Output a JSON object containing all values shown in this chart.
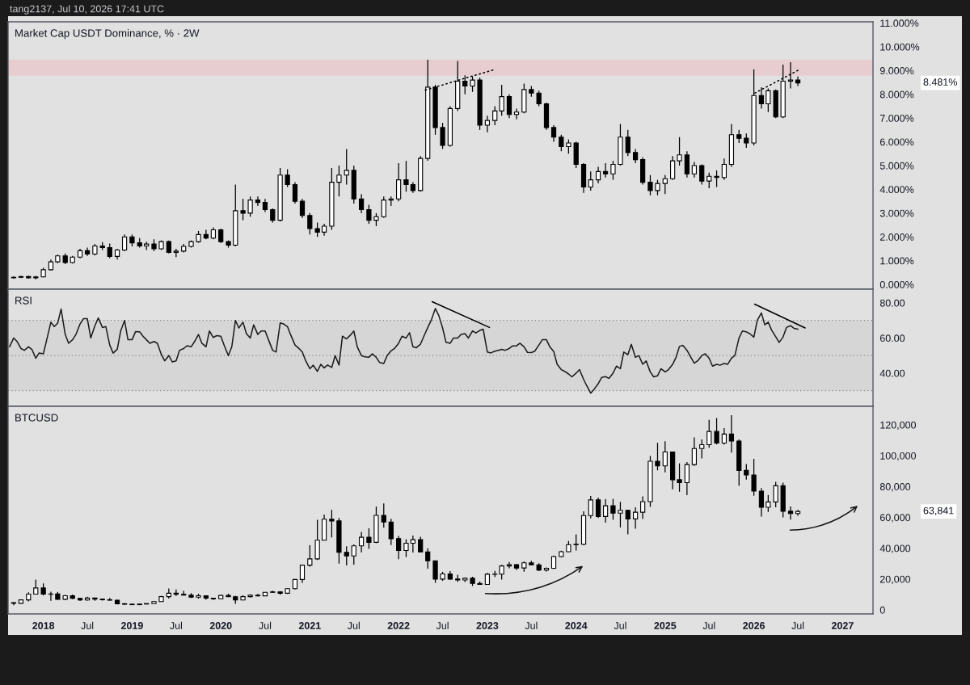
{
  "chart_data": [
    {
      "type": "candlestick",
      "title": "Market Cap USDT Dominance, % · 2W",
      "subtitle": "tang2137, Jul 10, 2026 17:41 UTC",
      "annotations": [
        "8.481%"
      ],
      "color": "#000000",
      "x": [
        "2017-09",
        "2017-10",
        "2017-11",
        "2017-12",
        "2018-01",
        "2018-02",
        "2018-03",
        "2018-04",
        "2018-05",
        "2018-06",
        "2018-07",
        "2018-08",
        "2018-09",
        "2018-10",
        "2018-11",
        "2018-12",
        "2019-01",
        "2019-02",
        "2019-03",
        "2019-04",
        "2019-05",
        "2019-06",
        "2019-07",
        "2019-08",
        "2019-09",
        "2019-10",
        "2019-11",
        "2019-12",
        "2020-01",
        "2020-02",
        "2020-03",
        "2020-04",
        "2020-05",
        "2020-06",
        "2020-07",
        "2020-08",
        "2020-09",
        "2020-10",
        "2020-11",
        "2020-12",
        "2021-01",
        "2021-02",
        "2021-03",
        "2021-04",
        "2021-05",
        "2021-06",
        "2021-07",
        "2021-08",
        "2021-09",
        "2021-10",
        "2021-11",
        "2021-12",
        "2022-01",
        "2022-02",
        "2022-03",
        "2022-04",
        "2022-05",
        "2022-06",
        "2022-07",
        "2022-08",
        "2022-09",
        "2022-10",
        "2022-11",
        "2022-12",
        "2023-01",
        "2023-02",
        "2023-03",
        "2023-04",
        "2023-05",
        "2023-06",
        "2023-07",
        "2023-08",
        "2023-09",
        "2023-10",
        "2023-11",
        "2023-12",
        "2024-01",
        "2024-02",
        "2024-03",
        "2024-04",
        "2024-05",
        "2024-06",
        "2024-07",
        "2024-08",
        "2024-09",
        "2024-10",
        "2024-11",
        "2024-12",
        "2025-01",
        "2025-02",
        "2025-03",
        "2025-04",
        "2025-05",
        "2025-06",
        "2025-07",
        "2025-08",
        "2025-09",
        "2025-10",
        "2025-11",
        "2025-12",
        "2026-01",
        "2026-02",
        "2026-03",
        "2026-04",
        "2026-05",
        "2026-06",
        "2026-07"
      ],
      "ohlc": [
        [
          0.28,
          0.34,
          0.24,
          0.3
        ],
        [
          0.3,
          0.36,
          0.27,
          0.33
        ],
        [
          0.33,
          0.36,
          0.25,
          0.28
        ],
        [
          0.28,
          0.36,
          0.22,
          0.32
        ],
        [
          0.32,
          0.7,
          0.3,
          0.62
        ],
        [
          0.62,
          1.05,
          0.58,
          0.95
        ],
        [
          0.95,
          1.25,
          0.9,
          1.2
        ],
        [
          1.2,
          1.3,
          0.85,
          0.92
        ],
        [
          0.92,
          1.2,
          0.88,
          1.15
        ],
        [
          1.15,
          1.5,
          1.1,
          1.42
        ],
        [
          1.42,
          1.55,
          1.2,
          1.28
        ],
        [
          1.28,
          1.7,
          1.22,
          1.62
        ],
        [
          1.62,
          1.78,
          1.45,
          1.55
        ],
        [
          1.55,
          1.72,
          1.1,
          1.18
        ],
        [
          1.18,
          1.5,
          1.05,
          1.45
        ],
        [
          1.45,
          2.1,
          1.4,
          2.0
        ],
        [
          2.0,
          2.1,
          1.6,
          1.75
        ],
        [
          1.75,
          1.95,
          1.55,
          1.62
        ],
        [
          1.62,
          1.8,
          1.45,
          1.7
        ],
        [
          1.7,
          1.9,
          1.4,
          1.5
        ],
        [
          1.5,
          1.85,
          1.45,
          1.8
        ],
        [
          1.8,
          1.85,
          1.3,
          1.35
        ],
        [
          1.35,
          1.5,
          1.15,
          1.4
        ],
        [
          1.4,
          1.7,
          1.35,
          1.6
        ],
        [
          1.6,
          1.85,
          1.55,
          1.8
        ],
        [
          1.8,
          2.25,
          1.75,
          2.1
        ],
        [
          2.1,
          2.3,
          1.9,
          1.95
        ],
        [
          1.95,
          2.4,
          1.9,
          2.3
        ],
        [
          2.3,
          2.35,
          1.75,
          1.8
        ],
        [
          1.8,
          1.85,
          1.55,
          1.65
        ],
        [
          1.65,
          4.2,
          1.6,
          3.1
        ],
        [
          3.1,
          3.6,
          2.7,
          3.0
        ],
        [
          3.0,
          3.7,
          2.85,
          3.55
        ],
        [
          3.55,
          3.7,
          3.3,
          3.45
        ],
        [
          3.45,
          3.6,
          3.05,
          3.15
        ],
        [
          3.15,
          3.2,
          2.6,
          2.7
        ],
        [
          2.7,
          4.9,
          2.65,
          4.6
        ],
        [
          4.6,
          4.85,
          4.1,
          4.2
        ],
        [
          4.2,
          4.3,
          3.4,
          3.5
        ],
        [
          3.5,
          3.6,
          2.8,
          2.9
        ],
        [
          2.9,
          3.0,
          2.1,
          2.35
        ],
        [
          2.35,
          2.6,
          2.0,
          2.2
        ],
        [
          2.2,
          2.55,
          2.05,
          2.45
        ],
        [
          2.45,
          4.9,
          2.3,
          4.3
        ],
        [
          4.3,
          5.0,
          3.7,
          4.6
        ],
        [
          4.6,
          5.7,
          4.2,
          4.8
        ],
        [
          4.8,
          5.0,
          3.4,
          3.6
        ],
        [
          3.6,
          3.8,
          3.0,
          3.15
        ],
        [
          3.15,
          3.35,
          2.55,
          2.7
        ],
        [
          2.7,
          3.0,
          2.45,
          2.85
        ],
        [
          2.85,
          3.7,
          2.8,
          3.55
        ],
        [
          3.55,
          3.7,
          3.3,
          3.6
        ],
        [
          3.6,
          5.1,
          3.5,
          4.4
        ],
        [
          4.4,
          5.2,
          3.9,
          4.2
        ],
        [
          4.2,
          4.3,
          3.85,
          3.95
        ],
        [
          3.95,
          5.4,
          3.9,
          5.3
        ],
        [
          5.3,
          9.45,
          5.2,
          8.3
        ],
        [
          8.3,
          8.4,
          6.3,
          6.6
        ],
        [
          6.6,
          6.8,
          5.7,
          5.85
        ],
        [
          5.85,
          7.5,
          5.8,
          7.4
        ],
        [
          7.4,
          9.4,
          7.3,
          8.55
        ],
        [
          8.55,
          8.8,
          8.0,
          8.35
        ],
        [
          8.35,
          8.75,
          8.1,
          8.6
        ],
        [
          8.6,
          8.7,
          6.5,
          6.7
        ],
        [
          6.7,
          7.1,
          6.4,
          6.9
        ],
        [
          6.9,
          7.5,
          6.7,
          7.3
        ],
        [
          7.3,
          8.4,
          7.1,
          7.9
        ],
        [
          7.9,
          8.0,
          7.0,
          7.15
        ],
        [
          7.15,
          7.4,
          6.95,
          7.25
        ],
        [
          7.25,
          8.45,
          7.2,
          8.2
        ],
        [
          8.2,
          8.35,
          7.9,
          8.05
        ],
        [
          8.05,
          8.15,
          7.5,
          7.6
        ],
        [
          7.6,
          7.65,
          6.5,
          6.6
        ],
        [
          6.6,
          6.7,
          6.0,
          6.2
        ],
        [
          6.2,
          6.3,
          5.6,
          5.8
        ],
        [
          5.8,
          6.1,
          5.5,
          5.95
        ],
        [
          5.95,
          6.0,
          4.9,
          5.05
        ],
        [
          5.05,
          5.1,
          3.85,
          4.1
        ],
        [
          4.1,
          4.75,
          3.95,
          4.4
        ],
        [
          4.4,
          4.95,
          4.25,
          4.75
        ],
        [
          4.75,
          5.1,
          4.5,
          4.65
        ],
        [
          4.65,
          5.2,
          4.4,
          5.05
        ],
        [
          5.05,
          6.75,
          5.0,
          6.2
        ],
        [
          6.2,
          6.5,
          5.4,
          5.55
        ],
        [
          5.55,
          5.7,
          5.1,
          5.25
        ],
        [
          5.25,
          5.35,
          4.2,
          4.3
        ],
        [
          4.3,
          4.6,
          3.75,
          3.95
        ],
        [
          3.95,
          4.4,
          3.75,
          4.25
        ],
        [
          4.25,
          4.6,
          3.8,
          4.45
        ],
        [
          4.45,
          5.4,
          4.4,
          5.2
        ],
        [
          5.2,
          6.2,
          5.0,
          5.45
        ],
        [
          5.45,
          5.6,
          4.5,
          4.65
        ],
        [
          4.65,
          5.15,
          4.5,
          5.0
        ],
        [
          5.0,
          5.05,
          4.2,
          4.35
        ],
        [
          4.35,
          4.7,
          4.05,
          4.55
        ],
        [
          4.55,
          4.8,
          4.1,
          4.5
        ],
        [
          4.5,
          5.3,
          4.4,
          5.05
        ],
        [
          5.05,
          6.75,
          4.95,
          6.3
        ],
        [
          6.3,
          6.5,
          5.95,
          6.15
        ],
        [
          6.15,
          6.35,
          5.75,
          5.95
        ],
        [
          5.95,
          9.05,
          5.85,
          7.95
        ],
        [
          7.95,
          8.3,
          7.4,
          7.6
        ],
        [
          7.6,
          8.25,
          7.25,
          8.15
        ],
        [
          8.15,
          8.2,
          7.0,
          7.05
        ],
        [
          7.05,
          9.25,
          7.0,
          8.55
        ],
        [
          8.55,
          9.35,
          8.25,
          8.6
        ],
        [
          8.6,
          8.75,
          8.35,
          8.481
        ]
      ],
      "series": [
        {
          "type": "line",
          "x": [
            "2022-04-21",
            "2023-01-27"
          ],
          "values": [
            8.18,
            9.03
          ],
          "color": "#000000",
          "line_style": "dotted"
        },
        {
          "type": "line",
          "x": [
            "2026-01-05",
            "2026-07-11"
          ],
          "values": [
            8.05,
            9.06
          ],
          "color": "#000000",
          "line_style": "dotted"
        }
      ],
      "bands": [
        {
          "axis": "y",
          "from": 8.78,
          "to": 9.46,
          "color": "#e8cdd0"
        }
      ],
      "xlim": [
        "2017-08-09",
        "2027-05-06"
      ],
      "ylim": [
        -0.2,
        11.05
      ],
      "yticks": [
        {
          "value": 0,
          "label": "0.000%"
        },
        {
          "value": 1,
          "label": "1.000%"
        },
        {
          "value": 2,
          "label": "2.000%"
        },
        {
          "value": 3,
          "label": "3.000%"
        },
        {
          "value": 4,
          "label": "4.000%"
        },
        {
          "value": 5,
          "label": "5.000%"
        },
        {
          "value": 6,
          "label": "6.000%"
        },
        {
          "value": 7,
          "label": "7.000%"
        },
        {
          "value": 8,
          "label": "8.000%"
        },
        {
          "value": 9,
          "label": "9.000%"
        },
        {
          "value": 10,
          "label": "10.000%"
        },
        {
          "value": 11,
          "label": "11.000%"
        }
      ],
      "tick_labels": "y"
    },
    {
      "type": "line",
      "title": "RSI",
      "x": [
        "2017-08-15",
        "2017-09-01",
        "2017-09-15",
        "2017-10-01",
        "2017-10-15",
        "2017-11-01",
        "2017-11-15",
        "2017-12-01",
        "2017-12-15",
        "2018-01-01",
        "2018-01-15",
        "2018-02-01",
        "2018-02-15",
        "2018-03-01",
        "2018-03-15",
        "2018-04-01",
        "2018-04-15",
        "2018-05-01",
        "2018-05-15",
        "2018-06-01",
        "2018-06-15",
        "2018-07-01",
        "2018-07-15",
        "2018-08-01",
        "2018-08-15",
        "2018-09-01",
        "2018-09-15",
        "2018-10-01",
        "2018-10-15",
        "2018-11-01",
        "2018-11-15",
        "2018-12-01",
        "2018-12-15",
        "2019-01-01",
        "2019-01-15",
        "2019-02-01",
        "2019-02-15",
        "2019-03-01",
        "2019-03-15",
        "2019-04-01",
        "2019-04-15",
        "2019-05-01",
        "2019-05-15",
        "2019-06-01",
        "2019-06-15",
        "2019-07-01",
        "2019-07-15",
        "2019-08-01",
        "2019-08-15",
        "2019-09-01",
        "2019-09-15",
        "2019-10-01",
        "2019-10-15",
        "2019-11-01",
        "2019-11-15",
        "2019-12-01",
        "2019-12-15",
        "2020-01-01",
        "2020-01-15",
        "2020-02-01",
        "2020-02-15",
        "2020-03-01",
        "2020-03-15",
        "2020-04-01",
        "2020-04-15",
        "2020-05-01",
        "2020-05-15",
        "2020-06-01",
        "2020-06-15",
        "2020-07-01",
        "2020-07-15",
        "2020-08-01",
        "2020-08-15",
        "2020-09-01",
        "2020-09-15",
        "2020-10-01",
        "2020-10-15",
        "2020-11-01",
        "2020-11-15",
        "2020-12-01",
        "2020-12-15",
        "2021-01-01",
        "2021-01-15",
        "2021-02-01",
        "2021-02-15",
        "2021-03-01",
        "2021-03-15",
        "2021-04-01",
        "2021-04-15",
        "2021-05-01",
        "2021-05-15",
        "2021-06-01",
        "2021-06-15",
        "2021-07-01",
        "2021-07-15",
        "2021-08-01",
        "2021-08-15",
        "2021-09-01",
        "2021-09-15",
        "2021-10-01",
        "2021-10-15",
        "2021-11-01",
        "2021-11-15",
        "2021-12-01",
        "2021-12-15",
        "2022-01-01",
        "2022-01-15",
        "2022-02-01",
        "2022-02-15",
        "2022-03-01",
        "2022-03-15",
        "2022-04-01",
        "2022-04-15",
        "2022-05-01",
        "2022-05-15",
        "2022-06-01",
        "2022-06-15",
        "2022-07-01",
        "2022-07-15",
        "2022-08-01",
        "2022-08-15",
        "2022-09-01",
        "2022-09-15",
        "2022-10-01",
        "2022-10-15",
        "2022-11-01",
        "2022-11-15",
        "2022-12-01",
        "2022-12-15",
        "2023-01-01",
        "2023-01-15",
        "2023-02-01",
        "2023-02-15",
        "2023-03-01",
        "2023-03-15",
        "2023-04-01",
        "2023-04-15",
        "2023-05-01",
        "2023-05-15",
        "2023-06-01",
        "2023-06-15",
        "2023-07-01",
        "2023-07-15",
        "2023-08-01",
        "2023-08-15",
        "2023-09-01",
        "2023-09-15",
        "2023-10-01",
        "2023-10-15",
        "2023-11-01",
        "2023-11-15",
        "2023-12-01",
        "2023-12-15",
        "2024-01-01",
        "2024-01-15",
        "2024-02-01",
        "2024-02-15",
        "2024-03-01",
        "2024-03-15",
        "2024-04-01",
        "2024-04-15",
        "2024-05-01",
        "2024-05-15",
        "2024-06-01",
        "2024-06-15",
        "2024-07-01",
        "2024-07-15",
        "2024-08-01",
        "2024-08-15",
        "2024-09-01",
        "2024-09-15",
        "2024-10-01",
        "2024-10-15",
        "2024-11-01",
        "2024-11-15",
        "2024-12-01",
        "2024-12-15",
        "2025-01-01",
        "2025-01-15",
        "2025-02-01",
        "2025-02-15",
        "2025-03-01",
        "2025-03-15",
        "2025-04-01",
        "2025-04-15",
        "2025-05-01",
        "2025-05-15",
        "2025-06-01",
        "2025-06-15",
        "2025-07-01",
        "2025-07-15",
        "2025-08-01",
        "2025-08-15",
        "2025-09-01",
        "2025-09-15",
        "2025-10-01",
        "2025-10-15",
        "2025-11-01",
        "2025-11-15",
        "2025-12-01",
        "2025-12-15",
        "2026-01-01",
        "2026-01-15",
        "2026-02-01",
        "2026-02-15",
        "2026-03-01",
        "2026-03-15",
        "2026-04-01",
        "2026-04-15",
        "2026-05-01",
        "2026-05-15",
        "2026-06-01",
        "2026-06-15",
        "2026-07-01"
      ],
      "series": [
        {
          "color": "#1a1a1a",
          "values": [
            55,
            60,
            58,
            54,
            53,
            55,
            53.5,
            48.5,
            51.5,
            51,
            59,
            69,
            66.5,
            68.5,
            76.5,
            62,
            57,
            59,
            62,
            68,
            71,
            71,
            60,
            67,
            71.4,
            66,
            66.5,
            56,
            51.4,
            53.6,
            64,
            70,
            59,
            59,
            63.6,
            63.5,
            61,
            59,
            57,
            58,
            57,
            50.7,
            47,
            50,
            46.4,
            47,
            53,
            54,
            55.6,
            55,
            58,
            62,
            57,
            55,
            64,
            60.3,
            61.4,
            61,
            55.7,
            50,
            55,
            70,
            65.7,
            69,
            62.5,
            60,
            67.5,
            62,
            64,
            64,
            59,
            53,
            52,
            68.6,
            68,
            66.5,
            61.5,
            56,
            54.3,
            52,
            47,
            42.5,
            44.5,
            41,
            45,
            43,
            44.6,
            43.2,
            50,
            44.6,
            61,
            59.5,
            61.4,
            64,
            55,
            50,
            49.3,
            49,
            51,
            49,
            46,
            45.5,
            50,
            52.7,
            54,
            57,
            61,
            60,
            63,
            55,
            54.5,
            56.5,
            61,
            66,
            70,
            76.8,
            72.9,
            65.7,
            57.5,
            57,
            60,
            60,
            62,
            62.5,
            60,
            64,
            62.9,
            64.3,
            65,
            52,
            51.5,
            52.5,
            53,
            53.5,
            53,
            54,
            55.5,
            55.5,
            57,
            55,
            51.8,
            51.7,
            52.5,
            56,
            59,
            59,
            55,
            52.3,
            45,
            42,
            41,
            39.5,
            37.9,
            40,
            42,
            36.4,
            32.5,
            28.6,
            30.8,
            34,
            37.5,
            38,
            37,
            40,
            44,
            42.5,
            52,
            50.5,
            56.4,
            49,
            50,
            45,
            47,
            40.7,
            37.9,
            38.5,
            42.5,
            40.7,
            42,
            45,
            49,
            55.2,
            55.8,
            53,
            49.5,
            45.7,
            47,
            50,
            51,
            48.5,
            44,
            45,
            44.5,
            45.5,
            45,
            48.5,
            50,
            60,
            64,
            63.5,
            62.5,
            60.5,
            70,
            74.3,
            67.5,
            69,
            64.5,
            60.7,
            57.5,
            60.5,
            66,
            67,
            65.5,
            65
          ]
        },
        {
          "x": [
            "2022-05-19",
            "2023-01-10"
          ],
          "values": [
            80.7,
            66
          ],
          "color": "#000000"
        },
        {
          "x": [
            "2026-01-04",
            "2026-07-31"
          ],
          "values": [
            79.3,
            65.7
          ],
          "color": "#000000"
        }
      ],
      "bands": [
        {
          "axis": "y",
          "from": 30,
          "to": 70,
          "color": "#d6d6d6"
        }
      ],
      "ref_lines": [
        {
          "axis": "y",
          "value": 70,
          "color": "#8a8a8a",
          "line_style": "dotted"
        },
        {
          "axis": "y",
          "value": 50,
          "color": "#8a8a8a",
          "line_style": "dotted"
        },
        {
          "axis": "y",
          "value": 30,
          "color": "#8a8a8a",
          "line_style": "dotted"
        }
      ],
      "xlim": [
        "2017-08-09",
        "2027-05-06"
      ],
      "ylim": [
        21.1,
        87.8
      ],
      "yticks": [
        {
          "value": 40,
          "label": "40.00"
        },
        {
          "value": 60,
          "label": "60.00"
        },
        {
          "value": 80,
          "label": "80.00"
        }
      ],
      "tick_labels": "y"
    },
    {
      "type": "candlestick",
      "title": "BTCUSD",
      "annotations": [
        "63,841"
      ],
      "color": "#000000",
      "x": [
        "2017-09",
        "2017-10",
        "2017-11",
        "2017-12",
        "2018-01",
        "2018-02",
        "2018-03",
        "2018-04",
        "2018-05",
        "2018-06",
        "2018-07",
        "2018-08",
        "2018-09",
        "2018-10",
        "2018-11",
        "2018-12",
        "2019-01",
        "2019-02",
        "2019-03",
        "2019-04",
        "2019-05",
        "2019-06",
        "2019-07",
        "2019-08",
        "2019-09",
        "2019-10",
        "2019-11",
        "2019-12",
        "2020-01",
        "2020-02",
        "2020-03",
        "2020-04",
        "2020-05",
        "2020-06",
        "2020-07",
        "2020-08",
        "2020-09",
        "2020-10",
        "2020-11",
        "2020-12",
        "2021-01",
        "2021-02",
        "2021-03",
        "2021-04",
        "2021-05",
        "2021-06",
        "2021-07",
        "2021-08",
        "2021-09",
        "2021-10",
        "2021-11",
        "2021-12",
        "2022-01",
        "2022-02",
        "2022-03",
        "2022-04",
        "2022-05",
        "2022-06",
        "2022-07",
        "2022-08",
        "2022-09",
        "2022-10",
        "2022-11",
        "2022-12",
        "2023-01",
        "2023-02",
        "2023-03",
        "2023-04",
        "2023-05",
        "2023-06",
        "2023-07",
        "2023-08",
        "2023-09",
        "2023-10",
        "2023-11",
        "2023-12",
        "2024-01",
        "2024-02",
        "2024-03",
        "2024-04",
        "2024-05",
        "2024-06",
        "2024-07",
        "2024-08",
        "2024-09",
        "2024-10",
        "2024-11",
        "2024-12",
        "2025-01",
        "2025-02",
        "2025-03",
        "2025-04",
        "2025-05",
        "2025-06",
        "2025-07",
        "2025-08",
        "2025-09",
        "2025-10",
        "2025-11",
        "2025-12",
        "2026-01",
        "2026-02",
        "2026-03",
        "2026-04",
        "2026-05",
        "2026-06",
        "2026-07"
      ],
      "ohlc": [
        [
          4700,
          5000,
          3000,
          4300
        ],
        [
          4300,
          6500,
          4200,
          6500
        ],
        [
          6500,
          11400,
          5500,
          10200
        ],
        [
          10200,
          19700,
          10000,
          14200
        ],
        [
          14200,
          17200,
          9400,
          10200
        ],
        [
          10200,
          11800,
          5900,
          10300
        ],
        [
          10300,
          11700,
          6600,
          6900
        ],
        [
          6900,
          9700,
          6400,
          9200
        ],
        [
          9200,
          10000,
          7000,
          7500
        ],
        [
          7500,
          7800,
          5800,
          6400
        ],
        [
          6400,
          8500,
          6100,
          7700
        ],
        [
          7700,
          7800,
          5900,
          7000
        ],
        [
          7000,
          7400,
          6100,
          6600
        ],
        [
          6600,
          7700,
          6200,
          6300
        ],
        [
          6300,
          6600,
          3600,
          4000
        ],
        [
          4000,
          4300,
          3200,
          3700
        ],
        [
          3700,
          4100,
          3400,
          3400
        ],
        [
          3400,
          4200,
          3400,
          3800
        ],
        [
          3800,
          4100,
          3700,
          4100
        ],
        [
          4100,
          5600,
          4100,
          5400
        ],
        [
          5400,
          9100,
          5300,
          8600
        ],
        [
          8600,
          13900,
          7400,
          10800
        ],
        [
          10800,
          13200,
          9100,
          10100
        ],
        [
          10100,
          12300,
          9400,
          9600
        ],
        [
          9600,
          10900,
          7700,
          8300
        ],
        [
          8300,
          10500,
          7300,
          9200
        ],
        [
          9200,
          9500,
          6500,
          7600
        ],
        [
          7600,
          7700,
          6400,
          7200
        ],
        [
          7200,
          9600,
          6900,
          9400
        ],
        [
          9400,
          10500,
          8400,
          8500
        ],
        [
          8500,
          9200,
          3900,
          6400
        ],
        [
          6400,
          9500,
          6200,
          8600
        ],
        [
          8600,
          10100,
          8100,
          9500
        ],
        [
          9500,
          10400,
          8800,
          9100
        ],
        [
          9100,
          11500,
          9000,
          11400
        ],
        [
          11400,
          12500,
          11000,
          11700
        ],
        [
          11700,
          12100,
          9900,
          10800
        ],
        [
          10800,
          14100,
          10400,
          13800
        ],
        [
          13800,
          19900,
          13200,
          19700
        ],
        [
          19700,
          29300,
          17600,
          29000
        ],
        [
          29000,
          42000,
          28100,
          33100
        ],
        [
          33100,
          58400,
          32300,
          45200
        ],
        [
          45200,
          61800,
          45000,
          58800
        ],
        [
          58800,
          64900,
          47000,
          57700
        ],
        [
          57700,
          59600,
          30000,
          37300
        ],
        [
          37300,
          41300,
          28800,
          35000
        ],
        [
          35000,
          42400,
          29300,
          41500
        ],
        [
          41500,
          50500,
          37300,
          47100
        ],
        [
          47100,
          52900,
          39600,
          43800
        ],
        [
          43800,
          67000,
          43300,
          61300
        ],
        [
          61300,
          69000,
          53300,
          57000
        ],
        [
          57000,
          59100,
          42000,
          46200
        ],
        [
          46200,
          48000,
          32900,
          38500
        ],
        [
          38500,
          45800,
          34300,
          43200
        ],
        [
          43200,
          48200,
          37200,
          45500
        ],
        [
          45500,
          47400,
          37500,
          37600
        ],
        [
          37600,
          40000,
          26700,
          31800
        ],
        [
          31800,
          32000,
          17600,
          20000
        ],
        [
          20000,
          24700,
          18800,
          23300
        ],
        [
          23300,
          25200,
          19500,
          20000
        ],
        [
          20000,
          22800,
          18200,
          19400
        ],
        [
          19400,
          21000,
          18100,
          20500
        ],
        [
          20500,
          21500,
          15500,
          17200
        ],
        [
          17200,
          18400,
          16300,
          16500
        ],
        [
          16500,
          24000,
          16500,
          23100
        ],
        [
          23100,
          25300,
          21400,
          23200
        ],
        [
          23200,
          29200,
          19600,
          28500
        ],
        [
          28500,
          31000,
          27000,
          29300
        ],
        [
          29300,
          29800,
          25800,
          27200
        ],
        [
          27200,
          31400,
          24800,
          30500
        ],
        [
          30500,
          31800,
          28900,
          29200
        ],
        [
          29200,
          30200,
          25200,
          25900
        ],
        [
          25900,
          27500,
          24900,
          27000
        ],
        [
          27000,
          35200,
          26600,
          34600
        ],
        [
          34600,
          38400,
          34100,
          37700
        ],
        [
          37700,
          44700,
          37600,
          42300
        ],
        [
          42300,
          49000,
          38500,
          42600
        ],
        [
          42600,
          63900,
          41900,
          61200
        ],
        [
          61200,
          73800,
          59300,
          71300
        ],
        [
          71300,
          72800,
          59600,
          60600
        ],
        [
          60600,
          71900,
          56600,
          67500
        ],
        [
          67500,
          72000,
          58400,
          62700
        ],
        [
          62700,
          70000,
          53500,
          64600
        ],
        [
          64600,
          65000,
          49000,
          59000
        ],
        [
          59000,
          66500,
          52600,
          63300
        ],
        [
          63300,
          73600,
          58900,
          70200
        ],
        [
          70200,
          99800,
          66800,
          96400
        ],
        [
          96400,
          108300,
          90500,
          93400
        ],
        [
          93400,
          109400,
          89200,
          102400
        ],
        [
          102400,
          102500,
          78200,
          84400
        ],
        [
          84400,
          95000,
          76600,
          82500
        ],
        [
          82500,
          95800,
          74400,
          94200
        ],
        [
          94200,
          111900,
          93400,
          104600
        ],
        [
          104600,
          110500,
          98200,
          107100
        ],
        [
          107100,
          123200,
          105100,
          115700
        ],
        [
          115700,
          124400,
          107300,
          108200
        ],
        [
          108200,
          117900,
          107300,
          114000
        ],
        [
          114000,
          126200,
          102000,
          109500
        ],
        [
          109500,
          110500,
          80600,
          90400
        ],
        [
          90400,
          94500,
          84500,
          87500
        ],
        [
          87500,
          97900,
          74000,
          77000
        ],
        [
          77000,
          79000,
          60500,
          66500
        ],
        [
          66500,
          74500,
          63500,
          70000
        ],
        [
          70000,
          83000,
          66500,
          80500
        ],
        [
          80500,
          82500,
          60000,
          64000
        ],
        [
          64000,
          67000,
          58500,
          62500
        ],
        [
          62500,
          64800,
          61000,
          63841
        ]
      ],
      "xlim": [
        "2017-08-09",
        "2027-05-06"
      ],
      "ylim": [
        -2600,
        132000
      ],
      "xticks": [
        {
          "value": "2018-01-01",
          "label": "2018"
        },
        {
          "value": "2018-07-01",
          "label": "Jul"
        },
        {
          "value": "2019-01-01",
          "label": "2019"
        },
        {
          "value": "2019-07-01",
          "label": "Jul"
        },
        {
          "value": "2020-01-01",
          "label": "2020"
        },
        {
          "value": "2020-07-01",
          "label": "Jul"
        },
        {
          "value": "2021-01-01",
          "label": "2021"
        },
        {
          "value": "2021-07-01",
          "label": "Jul"
        },
        {
          "value": "2022-01-01",
          "label": "2022"
        },
        {
          "value": "2022-07-01",
          "label": "Jul"
        },
        {
          "value": "2023-01-01",
          "label": "2023"
        },
        {
          "value": "2023-07-01",
          "label": "Jul"
        },
        {
          "value": "2024-01-01",
          "label": "2024"
        },
        {
          "value": "2024-07-01",
          "label": "Jul"
        },
        {
          "value": "2025-01-01",
          "label": "2025"
        },
        {
          "value": "2025-07-01",
          "label": "Jul"
        },
        {
          "value": "2026-01-01",
          "label": "2026"
        },
        {
          "value": "2026-07-01",
          "label": "Jul"
        },
        {
          "value": "2027-01-01",
          "label": "2027"
        }
      ],
      "yticks": [
        0,
        {
          "value": 20000,
          "label": "20,000"
        },
        {
          "value": 40000,
          "label": "40,000"
        },
        {
          "value": 60000,
          "label": "60,000"
        },
        {
          "value": 80000,
          "label": "80,000"
        },
        {
          "value": 100000,
          "label": "100,000"
        },
        {
          "value": 120000,
          "label": "120,000"
        }
      ]
    }
  ]
}
